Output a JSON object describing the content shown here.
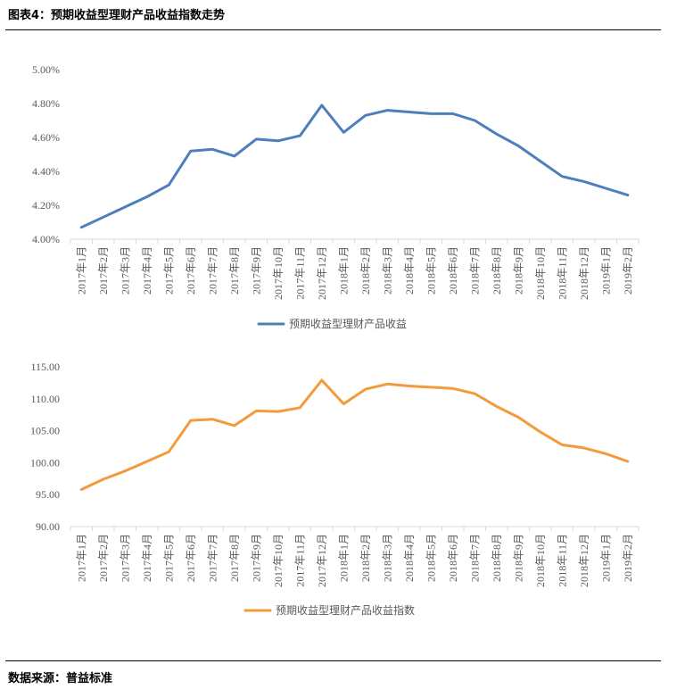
{
  "figure_title": "图表4：预期收益型理财产品收益指数走势",
  "source_note": "数据来源：普益标准",
  "colors": {
    "series1": "#4e7fba",
    "series2": "#f39a3c",
    "axis": "#d9d9d9",
    "text": "#595959"
  },
  "chart_data": [
    {
      "type": "line",
      "categories": [
        "2017年1月",
        "2017年2月",
        "2017年3月",
        "2017年4月",
        "2017年5月",
        "2017年6月",
        "2017年7月",
        "2017年8月",
        "2017年9月",
        "2017年10月",
        "2017年11月",
        "2017年12月",
        "2018年1月",
        "2018年2月",
        "2018年3月",
        "2018年4月",
        "2018年5月",
        "2018年6月",
        "2018年7月",
        "2018年8月",
        "2018年9月",
        "2018年10月",
        "2018年11月",
        "2018年12月",
        "2019年1月",
        "2019年2月"
      ],
      "series": [
        {
          "name": "预期收益型理财产品收益",
          "values": [
            4.07,
            4.13,
            4.19,
            4.25,
            4.32,
            4.52,
            4.53,
            4.49,
            4.59,
            4.58,
            4.61,
            4.79,
            4.63,
            4.73,
            4.76,
            4.75,
            4.74,
            4.74,
            4.7,
            4.62,
            4.55,
            4.46,
            4.37,
            4.34,
            4.3,
            4.26
          ]
        }
      ],
      "yticks": [
        "4.00%",
        "4.20%",
        "4.40%",
        "4.60%",
        "4.80%",
        "5.00%"
      ],
      "ylim": [
        4.0,
        5.0
      ]
    },
    {
      "type": "line",
      "categories": [
        "2017年1月",
        "2017年2月",
        "2017年3月",
        "2017年4月",
        "2017年5月",
        "2017年6月",
        "2017年7月",
        "2017年8月",
        "2017年9月",
        "2017年10月",
        "2017年11月",
        "2017年12月",
        "2018年1月",
        "2018年2月",
        "2018年3月",
        "2018年4月",
        "2018年5月",
        "2018年6月",
        "2018年7月",
        "2018年8月",
        "2018年9月",
        "2018年10月",
        "2018年11月",
        "2018年12月",
        "2019年1月",
        "2019年2月"
      ],
      "series": [
        {
          "name": "预期收益型理财产品收益指数",
          "values": [
            95.8,
            97.4,
            98.7,
            100.2,
            101.7,
            106.6,
            106.8,
            105.8,
            108.1,
            108.0,
            108.6,
            112.9,
            109.2,
            111.5,
            112.3,
            112.0,
            111.8,
            111.6,
            110.8,
            108.8,
            107.1,
            104.8,
            102.8,
            102.3,
            101.4,
            100.2
          ]
        }
      ],
      "yticks": [
        "90.00",
        "95.00",
        "100.00",
        "105.00",
        "110.00",
        "115.00"
      ],
      "ylim": [
        90,
        115
      ]
    }
  ]
}
